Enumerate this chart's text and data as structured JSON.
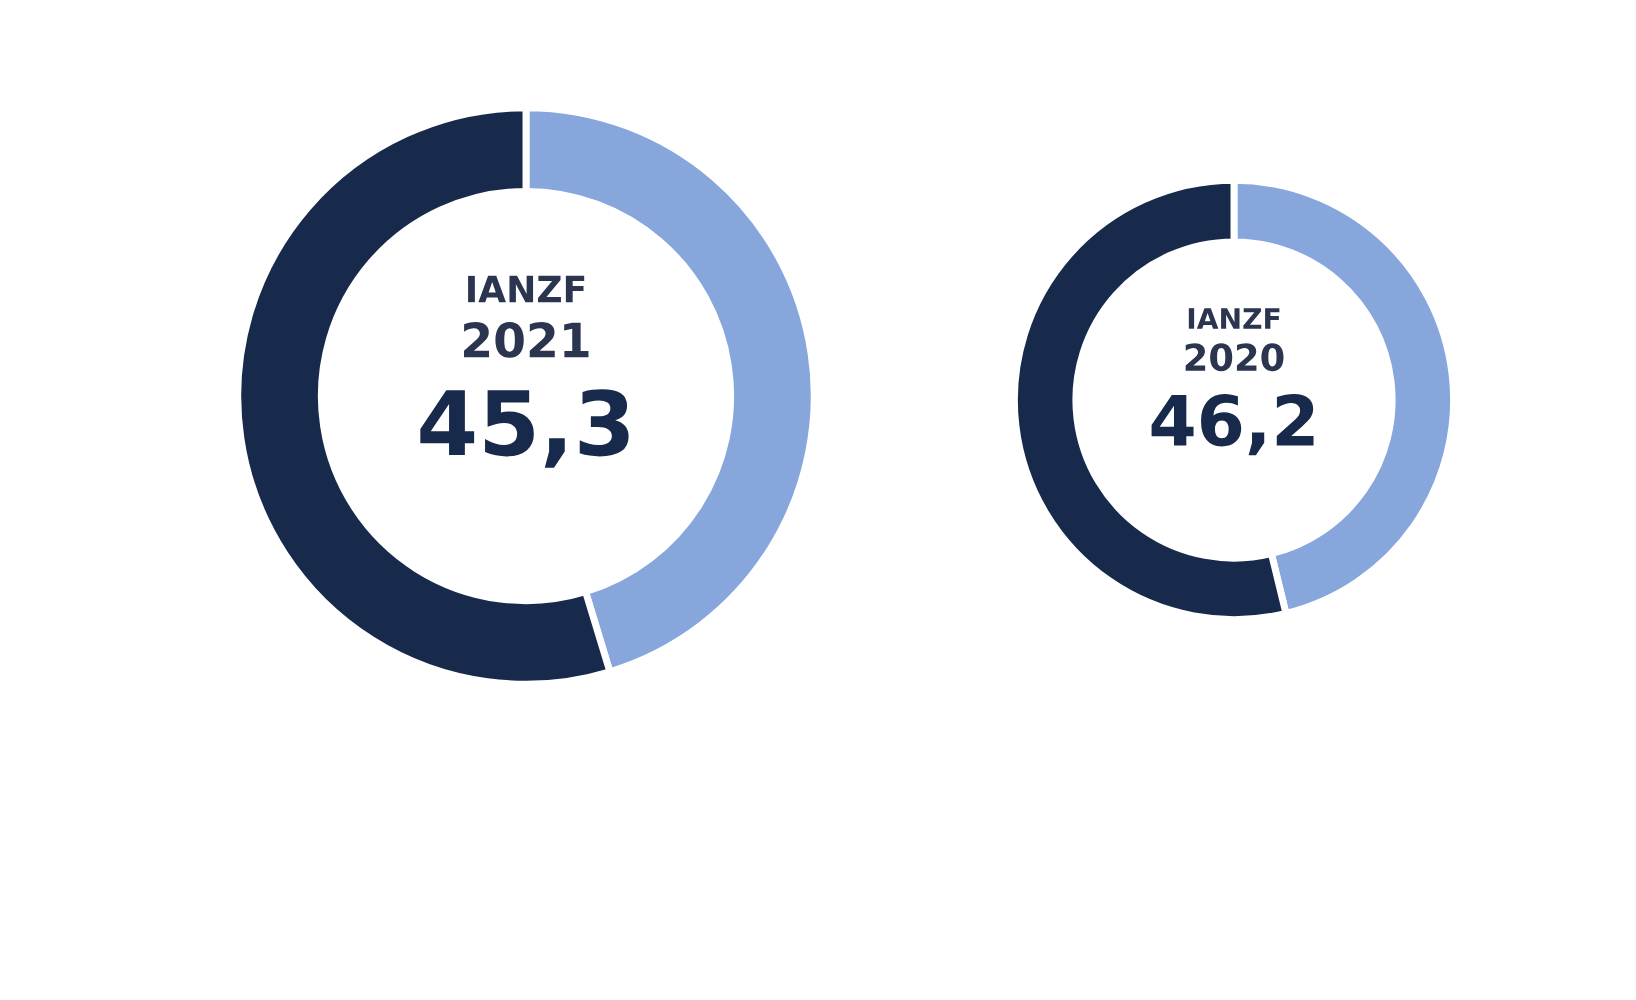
{
  "chart_data": [
    {
      "type": "donut",
      "title": "IANZF",
      "subtitle": "2021",
      "categories": [
        null,
        null
      ],
      "values": [
        45.3,
        54.7
      ],
      "colors": [
        "#86a6dc",
        "#172a4b"
      ],
      "annotations": [
        "45,3"
      ]
    },
    {
      "type": "donut",
      "title": "IANZF",
      "subtitle": "2020",
      "categories": [
        null,
        null
      ],
      "values": [
        46.2,
        53.8
      ],
      "colors": [
        "#86a6dc",
        "#172a4b"
      ],
      "annotations": [
        "46,2"
      ]
    }
  ]
}
